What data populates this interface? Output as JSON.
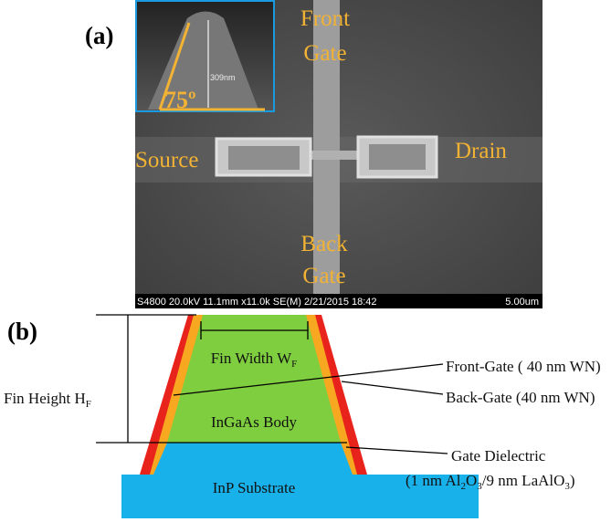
{
  "panel_a": {
    "label": "(a)",
    "inset": {
      "angle": "75º",
      "scale": "309nm"
    },
    "labels": {
      "front_gate": [
        "Front",
        "Gate"
      ],
      "back_gate": [
        "Back",
        "Gate"
      ],
      "source": "Source",
      "drain": "Drain"
    },
    "footer": {
      "info": "S4800 20.0kV 11.1mm x11.0k SE(M) 2/21/2015 18:42",
      "scale": "5.00um"
    }
  },
  "panel_b": {
    "label": "(b)",
    "fin_width": [
      "Fin Width W",
      "F"
    ],
    "fin_height": [
      "Fin Height H",
      "F"
    ],
    "front_gate": "Front-Gate ( 40 nm WN)",
    "back_gate": "Back-Gate (40 nm WN)",
    "body": "InGaAs Body",
    "dielectric_title": "Gate Dielectric",
    "dielectric_detail": [
      "(1 nm Al",
      "2",
      "O",
      "3",
      "/9 nm LaAlO",
      "3",
      ")"
    ],
    "substrate": "InP Substrate"
  }
}
